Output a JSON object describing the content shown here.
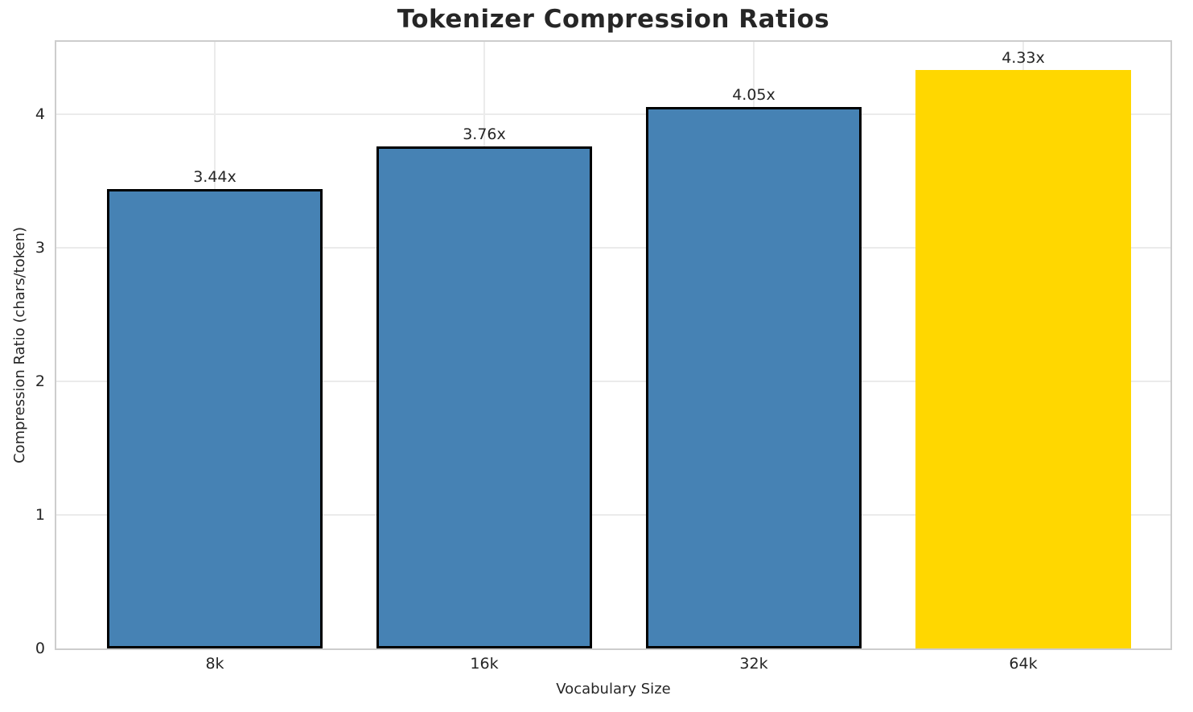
{
  "chart_data": {
    "type": "bar",
    "title": "Tokenizer Compression Ratios",
    "xlabel": "Vocabulary Size",
    "ylabel": "Compression Ratio (chars/token)",
    "categories": [
      "8k",
      "16k",
      "32k",
      "64k"
    ],
    "values": [
      3.44,
      3.76,
      4.05,
      4.33
    ],
    "value_labels": [
      "3.44x",
      "3.76x",
      "4.05x",
      "4.33x"
    ],
    "yticks": [
      0,
      1,
      2,
      3,
      4
    ],
    "ylim": [
      0,
      4.54
    ],
    "grid": true,
    "legend": "none",
    "bar_colors": [
      "#4682B4",
      "#4682B4",
      "#4682B4",
      "#FFD700"
    ],
    "bar_edge_colors": [
      "#000000",
      "#000000",
      "#000000",
      "none"
    ],
    "highlight_index": 3
  },
  "style": {
    "background": "#ffffff",
    "text_color": "#262626",
    "grid_color": "#ebebeb",
    "spine_color": "#cdcdcd",
    "accent_blue": "#4682B4",
    "accent_gold": "#FFD700"
  }
}
